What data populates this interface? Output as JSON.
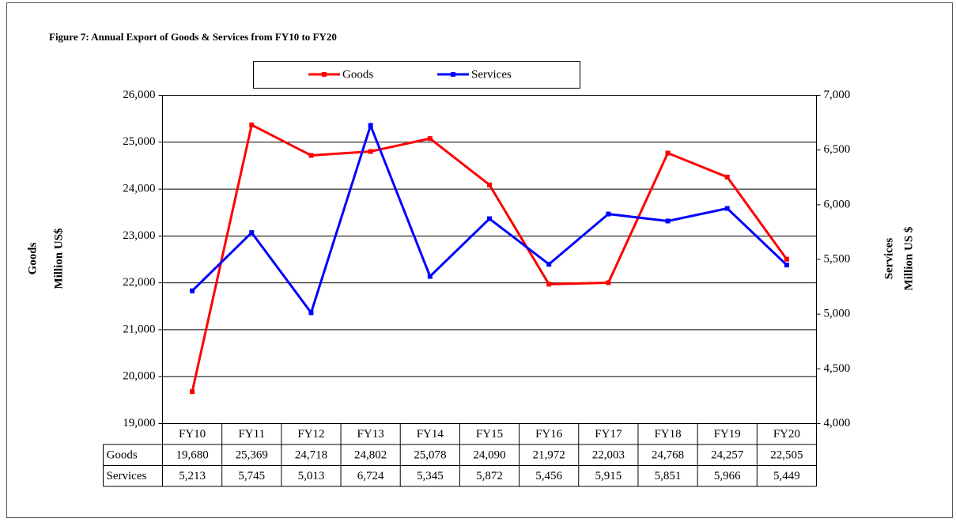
{
  "chart_data": {
    "type": "line",
    "title": "Figure 7: Annual Export of Goods & Services from FY10 to FY20",
    "categories": [
      "FY10",
      "FY11",
      "FY12",
      "FY13",
      "FY14",
      "FY15",
      "FY16",
      "FY17",
      "FY18",
      "FY19",
      "FY20"
    ],
    "series": [
      {
        "name": "Goods",
        "color": "#ff0000",
        "axis": "y",
        "values": [
          19680,
          25369,
          24718,
          24802,
          25078,
          24090,
          21972,
          22003,
          24768,
          24257,
          22505
        ],
        "value_labels": [
          "19,680",
          "25,369",
          "24,718",
          "24,802",
          "25,078",
          "24,090",
          "21,972",
          "22,003",
          "24,768",
          "24,257",
          "22,505"
        ]
      },
      {
        "name": "Services",
        "color": "#0000ff",
        "axis": "y2",
        "values": [
          5213,
          5745,
          5013,
          6724,
          5345,
          5872,
          5456,
          5915,
          5851,
          5966,
          5449
        ],
        "value_labels": [
          "5,213",
          "5,745",
          "5,013",
          "6,724",
          "5,345",
          "5,872",
          "5,456",
          "5,915",
          "5,851",
          "5,966",
          "5,449"
        ]
      }
    ],
    "ylabel": {
      "title": "Goods",
      "unit": "Million US$"
    },
    "y2label": {
      "title": "Services",
      "unit": "Million US $"
    },
    "ylim": [
      19000,
      26000
    ],
    "yticks": [
      {
        "value": 19000,
        "label": "19,000"
      },
      {
        "value": 20000,
        "label": "20,000"
      },
      {
        "value": 21000,
        "label": "21,000"
      },
      {
        "value": 22000,
        "label": "22,000"
      },
      {
        "value": 23000,
        "label": "23,000"
      },
      {
        "value": 24000,
        "label": "24,000"
      },
      {
        "value": 25000,
        "label": "25,000"
      },
      {
        "value": 26000,
        "label": "26,000"
      }
    ],
    "y2lim": [
      4000,
      7000
    ],
    "y2ticks": [
      {
        "value": 4000,
        "label": "4,000"
      },
      {
        "value": 4500,
        "label": "4,500"
      },
      {
        "value": 5000,
        "label": "5,000"
      },
      {
        "value": 5500,
        "label": "5,500"
      },
      {
        "value": 6000,
        "label": "6,000"
      },
      {
        "value": 6500,
        "label": "6,500"
      },
      {
        "value": 7000,
        "label": "7,000"
      }
    ],
    "grid": true,
    "legend": "top"
  }
}
